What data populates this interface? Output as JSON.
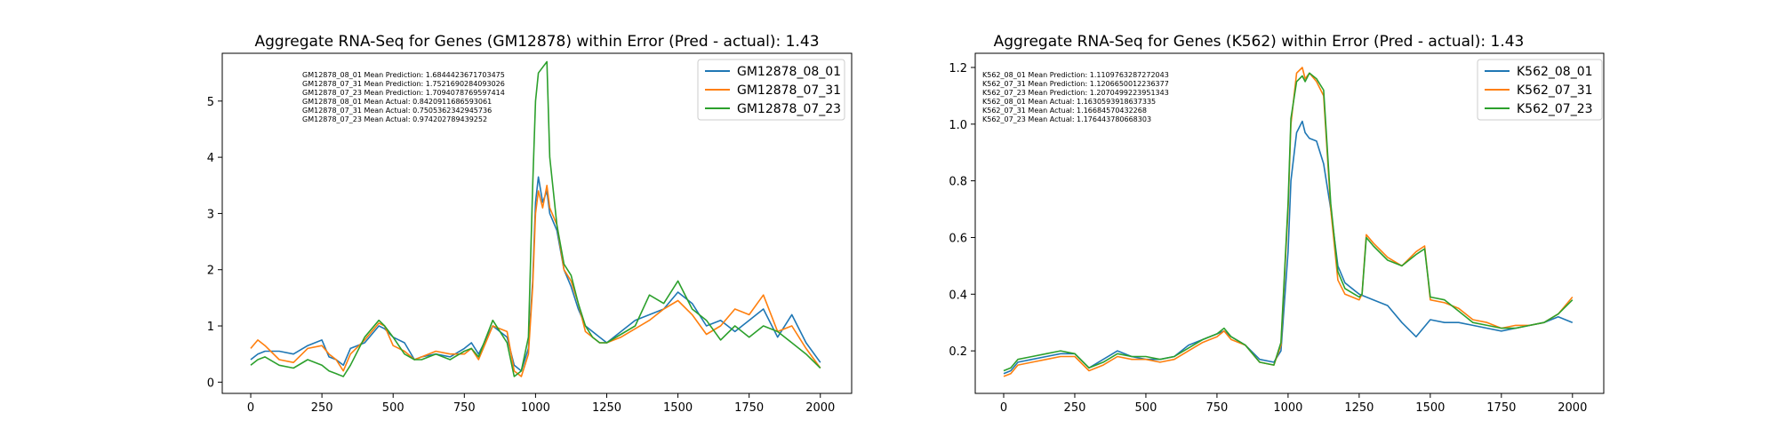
{
  "colors": {
    "series1": "#1f77b4",
    "series2": "#ff7f0e",
    "series3": "#2ca02c"
  },
  "chart_data": [
    {
      "type": "line",
      "title": "Aggregate RNA-Seq for Genes (GM12878) within Error (Pred - actual): 1.43",
      "xlabel": "",
      "ylabel": "",
      "xlim": [
        -100,
        2110
      ],
      "ylim": [
        -0.2,
        5.85
      ],
      "xticks": [
        0,
        250,
        500,
        750,
        1000,
        1250,
        1500,
        1750,
        2000
      ],
      "yticks": [
        0,
        1,
        2,
        3,
        4,
        5
      ],
      "legend": "top-right",
      "annotations": [
        "GM12878_08_01 Mean Prediction: 1.6844423671703475",
        "GM12878_07_31 Mean Prediction: 1.7521690284093026",
        "GM12878_07_23 Mean Prediction: 1.7094078769597414",
        "GM12878_08_01 Mean Actual: 0.8420911686593061",
        "GM12878_07_31 Mean Actual: 0.7505362342945736",
        "GM12878_07_23 Mean Actual: 0.974202789439252"
      ],
      "series": [
        {
          "name": "GM12878_08_01",
          "color": "series1",
          "x": [
            0,
            25,
            50,
            100,
            150,
            200,
            250,
            275,
            300,
            325,
            350,
            400,
            450,
            470,
            500,
            540,
            575,
            600,
            650,
            700,
            750,
            775,
            800,
            850,
            900,
            925,
            950,
            975,
            990,
            1000,
            1010,
            1025,
            1040,
            1050,
            1075,
            1100,
            1125,
            1150,
            1175,
            1200,
            1225,
            1250,
            1300,
            1350,
            1400,
            1450,
            1500,
            1550,
            1600,
            1650,
            1700,
            1750,
            1800,
            1850,
            1900,
            1950,
            2000
          ],
          "y": [
            0.4,
            0.5,
            0.55,
            0.55,
            0.5,
            0.65,
            0.75,
            0.45,
            0.4,
            0.3,
            0.6,
            0.7,
            1.0,
            0.95,
            0.8,
            0.7,
            0.4,
            0.45,
            0.5,
            0.45,
            0.6,
            0.7,
            0.5,
            1.0,
            0.8,
            0.3,
            0.2,
            0.6,
            1.8,
            3.2,
            3.65,
            3.2,
            3.4,
            3.0,
            2.7,
            2.0,
            1.7,
            1.3,
            1.0,
            0.9,
            0.8,
            0.7,
            0.9,
            1.1,
            1.2,
            1.3,
            1.6,
            1.4,
            1.0,
            1.1,
            0.9,
            1.1,
            1.3,
            0.8,
            1.2,
            0.7,
            0.35
          ]
        },
        {
          "name": "GM12878_07_31",
          "color": "series2",
          "x": [
            0,
            25,
            50,
            100,
            150,
            200,
            250,
            275,
            300,
            325,
            350,
            400,
            450,
            470,
            500,
            540,
            575,
            600,
            650,
            700,
            750,
            775,
            800,
            850,
            900,
            925,
            950,
            975,
            990,
            1000,
            1010,
            1025,
            1040,
            1050,
            1075,
            1100,
            1125,
            1150,
            1175,
            1200,
            1225,
            1250,
            1300,
            1350,
            1400,
            1450,
            1500,
            1550,
            1600,
            1650,
            1700,
            1750,
            1800,
            1850,
            1900,
            1950,
            2000
          ],
          "y": [
            0.6,
            0.75,
            0.65,
            0.4,
            0.35,
            0.6,
            0.65,
            0.5,
            0.4,
            0.2,
            0.5,
            0.75,
            1.05,
            1.0,
            0.65,
            0.55,
            0.4,
            0.45,
            0.55,
            0.5,
            0.5,
            0.6,
            0.4,
            1.0,
            0.9,
            0.2,
            0.1,
            0.5,
            1.7,
            3.0,
            3.4,
            3.1,
            3.5,
            3.1,
            2.8,
            2.0,
            1.8,
            1.4,
            0.9,
            0.8,
            0.7,
            0.7,
            0.8,
            0.95,
            1.1,
            1.3,
            1.45,
            1.2,
            0.85,
            1.0,
            1.3,
            1.2,
            1.55,
            0.9,
            1.0,
            0.6,
            0.25
          ]
        },
        {
          "name": "GM12878_07_23",
          "color": "series3",
          "x": [
            0,
            25,
            50,
            100,
            150,
            200,
            250,
            275,
            300,
            325,
            350,
            400,
            450,
            470,
            500,
            540,
            575,
            600,
            650,
            700,
            750,
            775,
            800,
            850,
            900,
            925,
            950,
            975,
            990,
            1000,
            1010,
            1025,
            1040,
            1050,
            1075,
            1100,
            1125,
            1150,
            1175,
            1200,
            1225,
            1250,
            1300,
            1350,
            1400,
            1450,
            1500,
            1550,
            1600,
            1650,
            1700,
            1750,
            1800,
            1850,
            1900,
            1950,
            2000
          ],
          "y": [
            0.3,
            0.4,
            0.45,
            0.3,
            0.25,
            0.4,
            0.3,
            0.2,
            0.15,
            0.1,
            0.3,
            0.8,
            1.1,
            1.0,
            0.8,
            0.5,
            0.4,
            0.4,
            0.5,
            0.4,
            0.55,
            0.6,
            0.45,
            1.1,
            0.7,
            0.1,
            0.2,
            0.8,
            3.5,
            5.0,
            5.5,
            5.6,
            5.7,
            4.0,
            2.8,
            2.1,
            1.9,
            1.4,
            1.0,
            0.8,
            0.7,
            0.7,
            0.85,
            1.0,
            1.55,
            1.4,
            1.8,
            1.3,
            1.1,
            0.75,
            1.0,
            0.8,
            1.0,
            0.9,
            0.7,
            0.5,
            0.25
          ]
        }
      ]
    },
    {
      "type": "line",
      "title": "Aggregate RNA-Seq for Genes (K562) within Error (Pred - actual): 1.43",
      "xlabel": "",
      "ylabel": "",
      "xlim": [
        -100,
        2110
      ],
      "ylim": [
        0.05,
        1.25
      ],
      "xticks": [
        0,
        250,
        500,
        750,
        1000,
        1250,
        1500,
        1750,
        2000
      ],
      "yticks": [
        0.2,
        0.4,
        0.6,
        0.8,
        1.0,
        1.2
      ],
      "legend": "top-right",
      "annotations": [
        "K562_08_01 Mean Prediction: 1.1109763287272043",
        "K562_07_31 Mean Prediction: 1.1206650012236377",
        "K562_07_23 Mean Prediction: 1.2070499223951343",
        "K562_08_01 Mean Actual: 1.1630593918637335",
        "K562_07_31 Mean Actual: 1.1668457043226​8",
        "K562_07_23 Mean Actual: 1.176443780668303"
      ],
      "series": [
        {
          "name": "K562_08_01",
          "color": "series1",
          "x": [
            0,
            25,
            50,
            100,
            150,
            200,
            250,
            300,
            350,
            400,
            450,
            500,
            550,
            600,
            650,
            700,
            750,
            775,
            800,
            850,
            900,
            950,
            975,
            1000,
            1010,
            1030,
            1050,
            1060,
            1075,
            1100,
            1125,
            1150,
            1175,
            1200,
            1250,
            1300,
            1350,
            1400,
            1450,
            1500,
            1550,
            1600,
            1650,
            1700,
            1750,
            1800,
            1850,
            1900,
            1950,
            2000
          ],
          "y": [
            0.12,
            0.13,
            0.16,
            0.17,
            0.18,
            0.19,
            0.19,
            0.14,
            0.17,
            0.2,
            0.18,
            0.17,
            0.17,
            0.18,
            0.22,
            0.24,
            0.26,
            0.27,
            0.25,
            0.22,
            0.17,
            0.16,
            0.2,
            0.55,
            0.8,
            0.97,
            1.01,
            0.97,
            0.95,
            0.94,
            0.86,
            0.7,
            0.5,
            0.44,
            0.4,
            0.38,
            0.36,
            0.3,
            0.25,
            0.31,
            0.3,
            0.3,
            0.29,
            0.28,
            0.27,
            0.28,
            0.29,
            0.3,
            0.32,
            0.3
          ]
        },
        {
          "name": "K562_07_31",
          "color": "series2",
          "x": [
            0,
            25,
            50,
            100,
            150,
            200,
            250,
            300,
            350,
            400,
            450,
            500,
            550,
            600,
            650,
            700,
            750,
            775,
            800,
            850,
            900,
            950,
            975,
            1000,
            1010,
            1030,
            1050,
            1060,
            1075,
            1100,
            1125,
            1150,
            1175,
            1200,
            1250,
            1260,
            1275,
            1300,
            1350,
            1400,
            1450,
            1480,
            1500,
            1550,
            1600,
            1650,
            1700,
            1750,
            1800,
            1850,
            1900,
            1950,
            2000
          ],
          "y": [
            0.11,
            0.12,
            0.15,
            0.16,
            0.17,
            0.18,
            0.18,
            0.13,
            0.15,
            0.18,
            0.17,
            0.17,
            0.16,
            0.17,
            0.2,
            0.23,
            0.25,
            0.27,
            0.24,
            0.22,
            0.16,
            0.15,
            0.22,
            0.7,
            1.0,
            1.18,
            1.2,
            1.16,
            1.18,
            1.15,
            1.1,
            0.7,
            0.45,
            0.4,
            0.38,
            0.4,
            0.61,
            0.58,
            0.53,
            0.5,
            0.55,
            0.57,
            0.38,
            0.37,
            0.35,
            0.31,
            0.3,
            0.28,
            0.29,
            0.29,
            0.3,
            0.33,
            0.39
          ]
        },
        {
          "name": "K562_07_23",
          "color": "series3",
          "x": [
            0,
            25,
            50,
            100,
            150,
            200,
            250,
            300,
            350,
            400,
            450,
            500,
            550,
            600,
            650,
            700,
            750,
            775,
            800,
            850,
            900,
            950,
            975,
            1000,
            1010,
            1030,
            1050,
            1060,
            1075,
            1100,
            1125,
            1150,
            1175,
            1200,
            1250,
            1260,
            1275,
            1300,
            1350,
            1400,
            1450,
            1480,
            1500,
            1550,
            1600,
            1650,
            1700,
            1750,
            1800,
            1850,
            1900,
            1950,
            2000
          ],
          "y": [
            0.13,
            0.14,
            0.17,
            0.18,
            0.19,
            0.2,
            0.19,
            0.14,
            0.16,
            0.19,
            0.18,
            0.18,
            0.17,
            0.18,
            0.21,
            0.24,
            0.26,
            0.28,
            0.25,
            0.22,
            0.16,
            0.15,
            0.23,
            0.72,
            1.02,
            1.15,
            1.17,
            1.15,
            1.18,
            1.16,
            1.12,
            0.72,
            0.48,
            0.42,
            0.39,
            0.4,
            0.6,
            0.57,
            0.52,
            0.5,
            0.54,
            0.56,
            0.39,
            0.38,
            0.34,
            0.3,
            0.29,
            0.28,
            0.28,
            0.29,
            0.3,
            0.33,
            0.38
          ]
        }
      ]
    }
  ]
}
